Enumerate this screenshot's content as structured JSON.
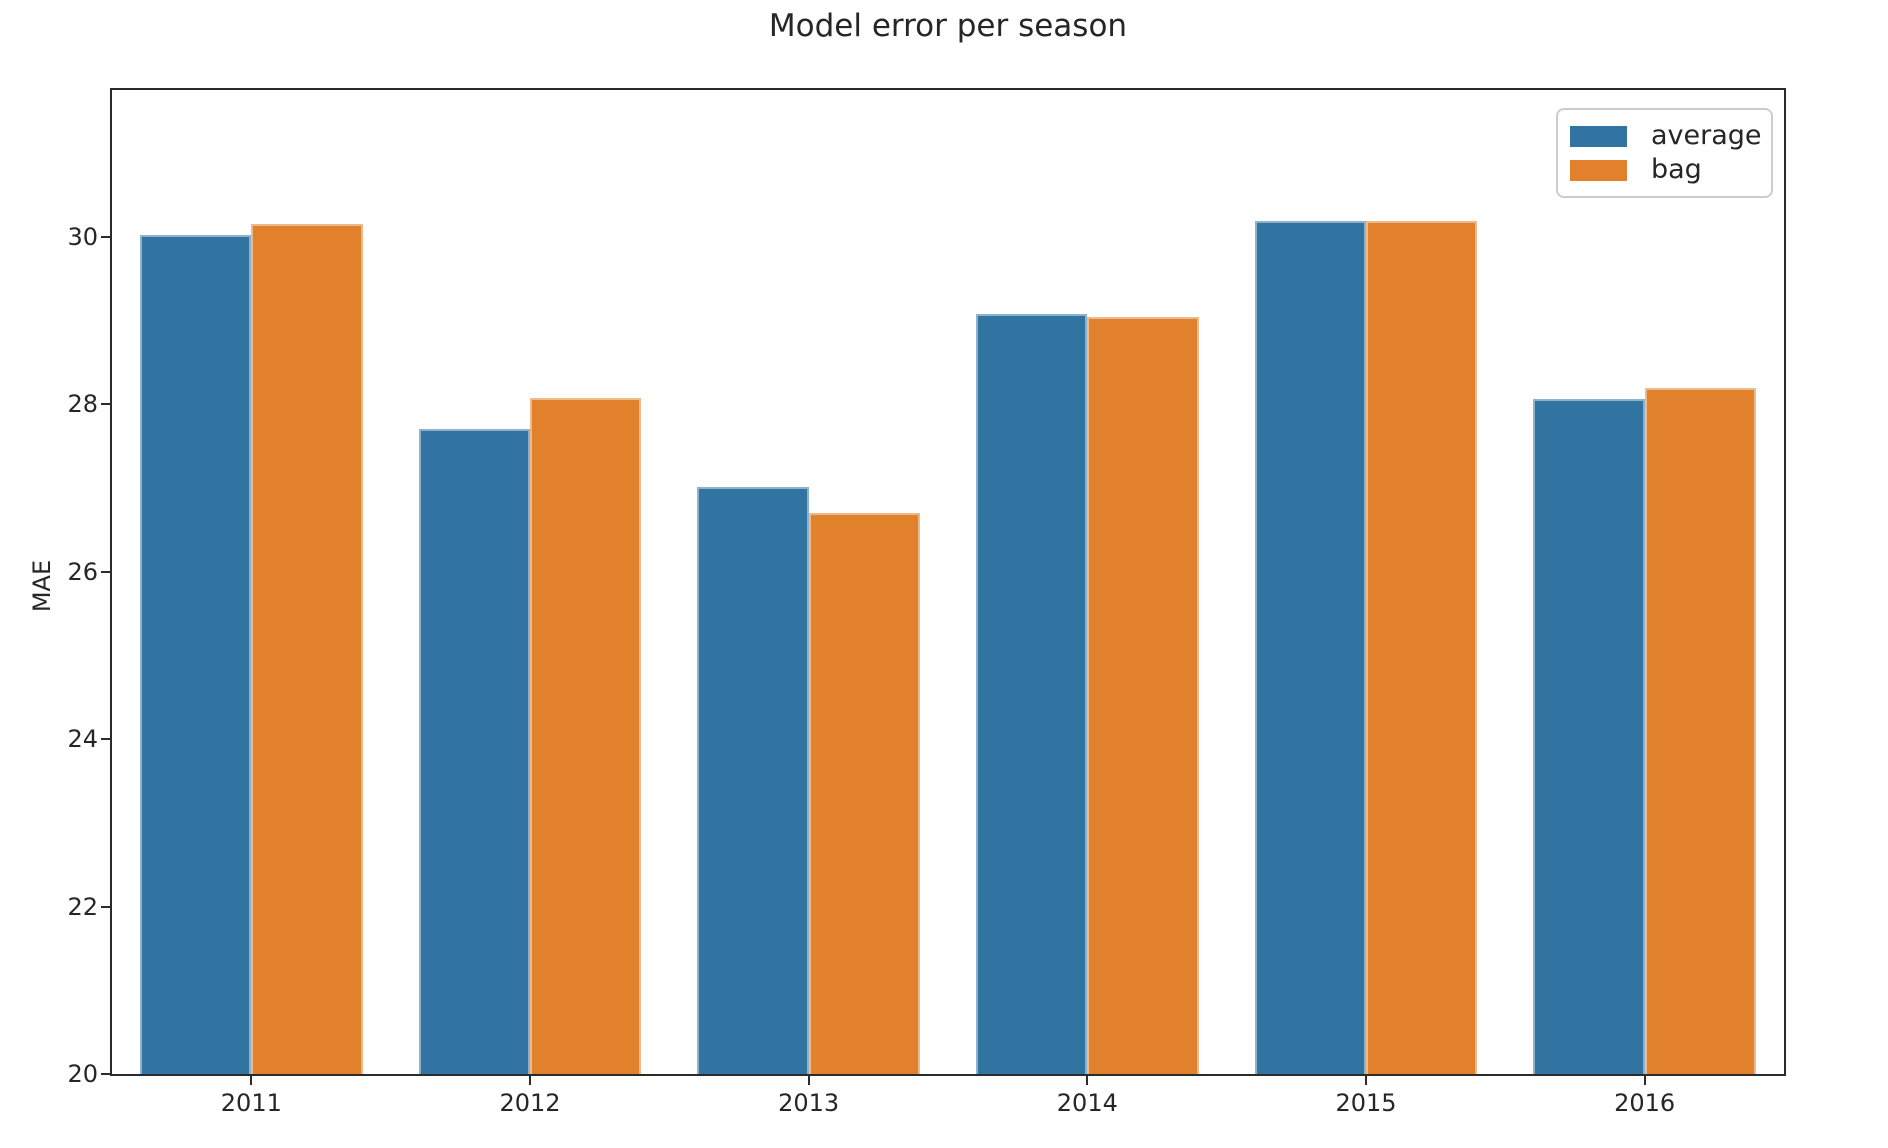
{
  "chart_data": {
    "type": "bar",
    "title": "Model error per season",
    "categories": [
      "2011",
      "2012",
      "2013",
      "2014",
      "2015",
      "2016"
    ],
    "series": [
      {
        "name": "average",
        "color": "#3274a1",
        "values": [
          30.02,
          27.7,
          27.01,
          29.07,
          30.18,
          28.06
        ]
      },
      {
        "name": "bag",
        "color": "#e1812c",
        "values": [
          30.15,
          28.07,
          26.7,
          29.04,
          30.18,
          28.19
        ]
      }
    ],
    "xlabel": "",
    "ylabel": "MAE",
    "ylim": [
      20,
      31.75
    ],
    "yticks": [
      20,
      22,
      24,
      26,
      28,
      30
    ],
    "grid": false,
    "legend": {
      "position": "upper right",
      "entries": [
        "average",
        "bag"
      ]
    },
    "bar_group_fraction": 0.8
  }
}
